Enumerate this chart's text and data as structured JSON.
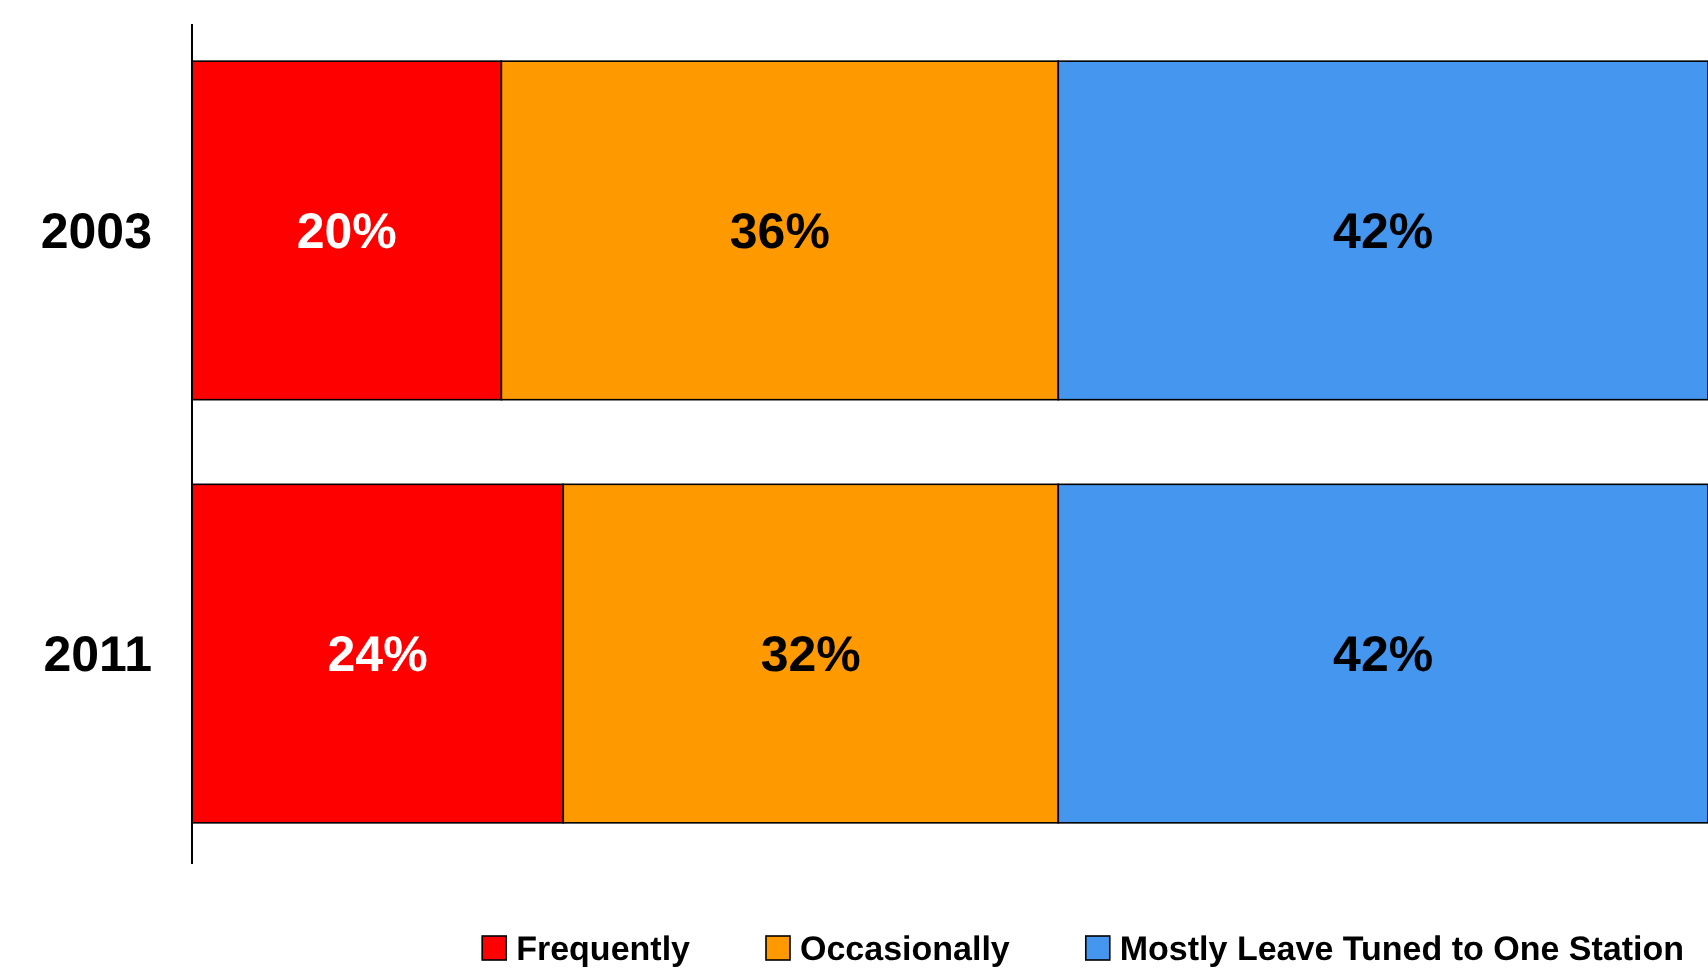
{
  "chart_data": {
    "type": "bar",
    "orientation": "horizontal",
    "stacked": true,
    "categories": [
      "2003",
      "2011"
    ],
    "series": [
      {
        "name": "Frequently",
        "color": "#ff0000",
        "values": [
          20,
          24
        ],
        "value_labels": [
          "20%",
          "24%"
        ]
      },
      {
        "name": "Occasionally",
        "color": "#ff9900",
        "values": [
          36,
          32
        ],
        "value_labels": [
          "36%",
          "32%"
        ]
      },
      {
        "name": "Mostly Leave Tuned to One Station",
        "color": "#4496ee",
        "values": [
          42,
          42
        ],
        "value_labels": [
          "42%",
          "42%"
        ]
      }
    ],
    "tick_labels": "y",
    "legend": "bottom"
  }
}
